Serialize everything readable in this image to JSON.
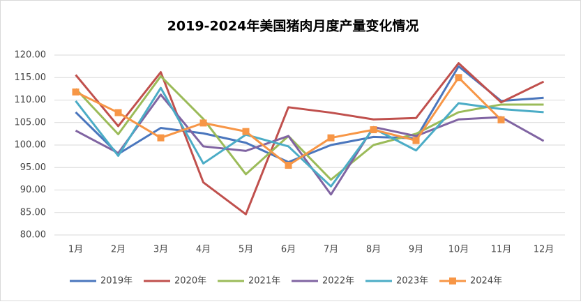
{
  "chart_data": {
    "type": "line",
    "title": "2019-2024年美国猪肉月度产量变化情况",
    "categories": [
      "1月",
      "2月",
      "3月",
      "4月",
      "5月",
      "6月",
      "7月",
      "8月",
      "9月",
      "10月",
      "11月",
      "12月"
    ],
    "ylim": [
      80,
      120
    ],
    "yticks": [
      {
        "value": 80,
        "label": "80.00"
      },
      {
        "value": 85,
        "label": "85.00"
      },
      {
        "value": 90,
        "label": "90.00"
      },
      {
        "value": 95,
        "label": "95.00"
      },
      {
        "value": 100,
        "label": "100.00"
      },
      {
        "value": 105,
        "label": "105.00"
      },
      {
        "value": 110,
        "label": "110.00"
      },
      {
        "value": 115,
        "label": "115.00"
      },
      {
        "value": 120,
        "label": "120.00"
      }
    ],
    "grid": true,
    "legend": "bottom",
    "series": [
      {
        "name": "2019年",
        "color": "#4a76bd",
        "values": [
          107.3,
          98,
          103.8,
          102.6,
          100.5,
          96.2,
          100,
          101.8,
          101.5,
          117.5,
          109.8,
          110.5
        ]
      },
      {
        "name": "2020年",
        "color": "#c0504d",
        "values": [
          115.6,
          104.2,
          116.2,
          91.7,
          84.6,
          108.4,
          107.2,
          105.7,
          106,
          118.2,
          109.5,
          114.1
        ]
      },
      {
        "name": "2021年",
        "color": "#9bbb59",
        "values": [
          112.5,
          102.4,
          115.3,
          105.8,
          93.5,
          102,
          92.3,
          100,
          102.5,
          107.3,
          109,
          109
        ]
      },
      {
        "name": "2022年",
        "color": "#8064a2",
        "values": [
          103.2,
          98.2,
          111.2,
          99.7,
          98.7,
          102,
          89,
          104,
          102,
          105.7,
          106.2,
          100.9
        ]
      },
      {
        "name": "2023年",
        "color": "#4bacc6",
        "values": [
          109.8,
          97.6,
          112.7,
          95.9,
          102.3,
          99.7,
          90.8,
          103.7,
          98.8,
          109.3,
          108,
          107.3
        ]
      },
      {
        "name": "2024年",
        "color": "#f79646",
        "marker": "square",
        "values": [
          111.8,
          107.2,
          101.6,
          104.9,
          103,
          95.5,
          101.6,
          103.4,
          101,
          115,
          105.6,
          null
        ]
      }
    ]
  }
}
